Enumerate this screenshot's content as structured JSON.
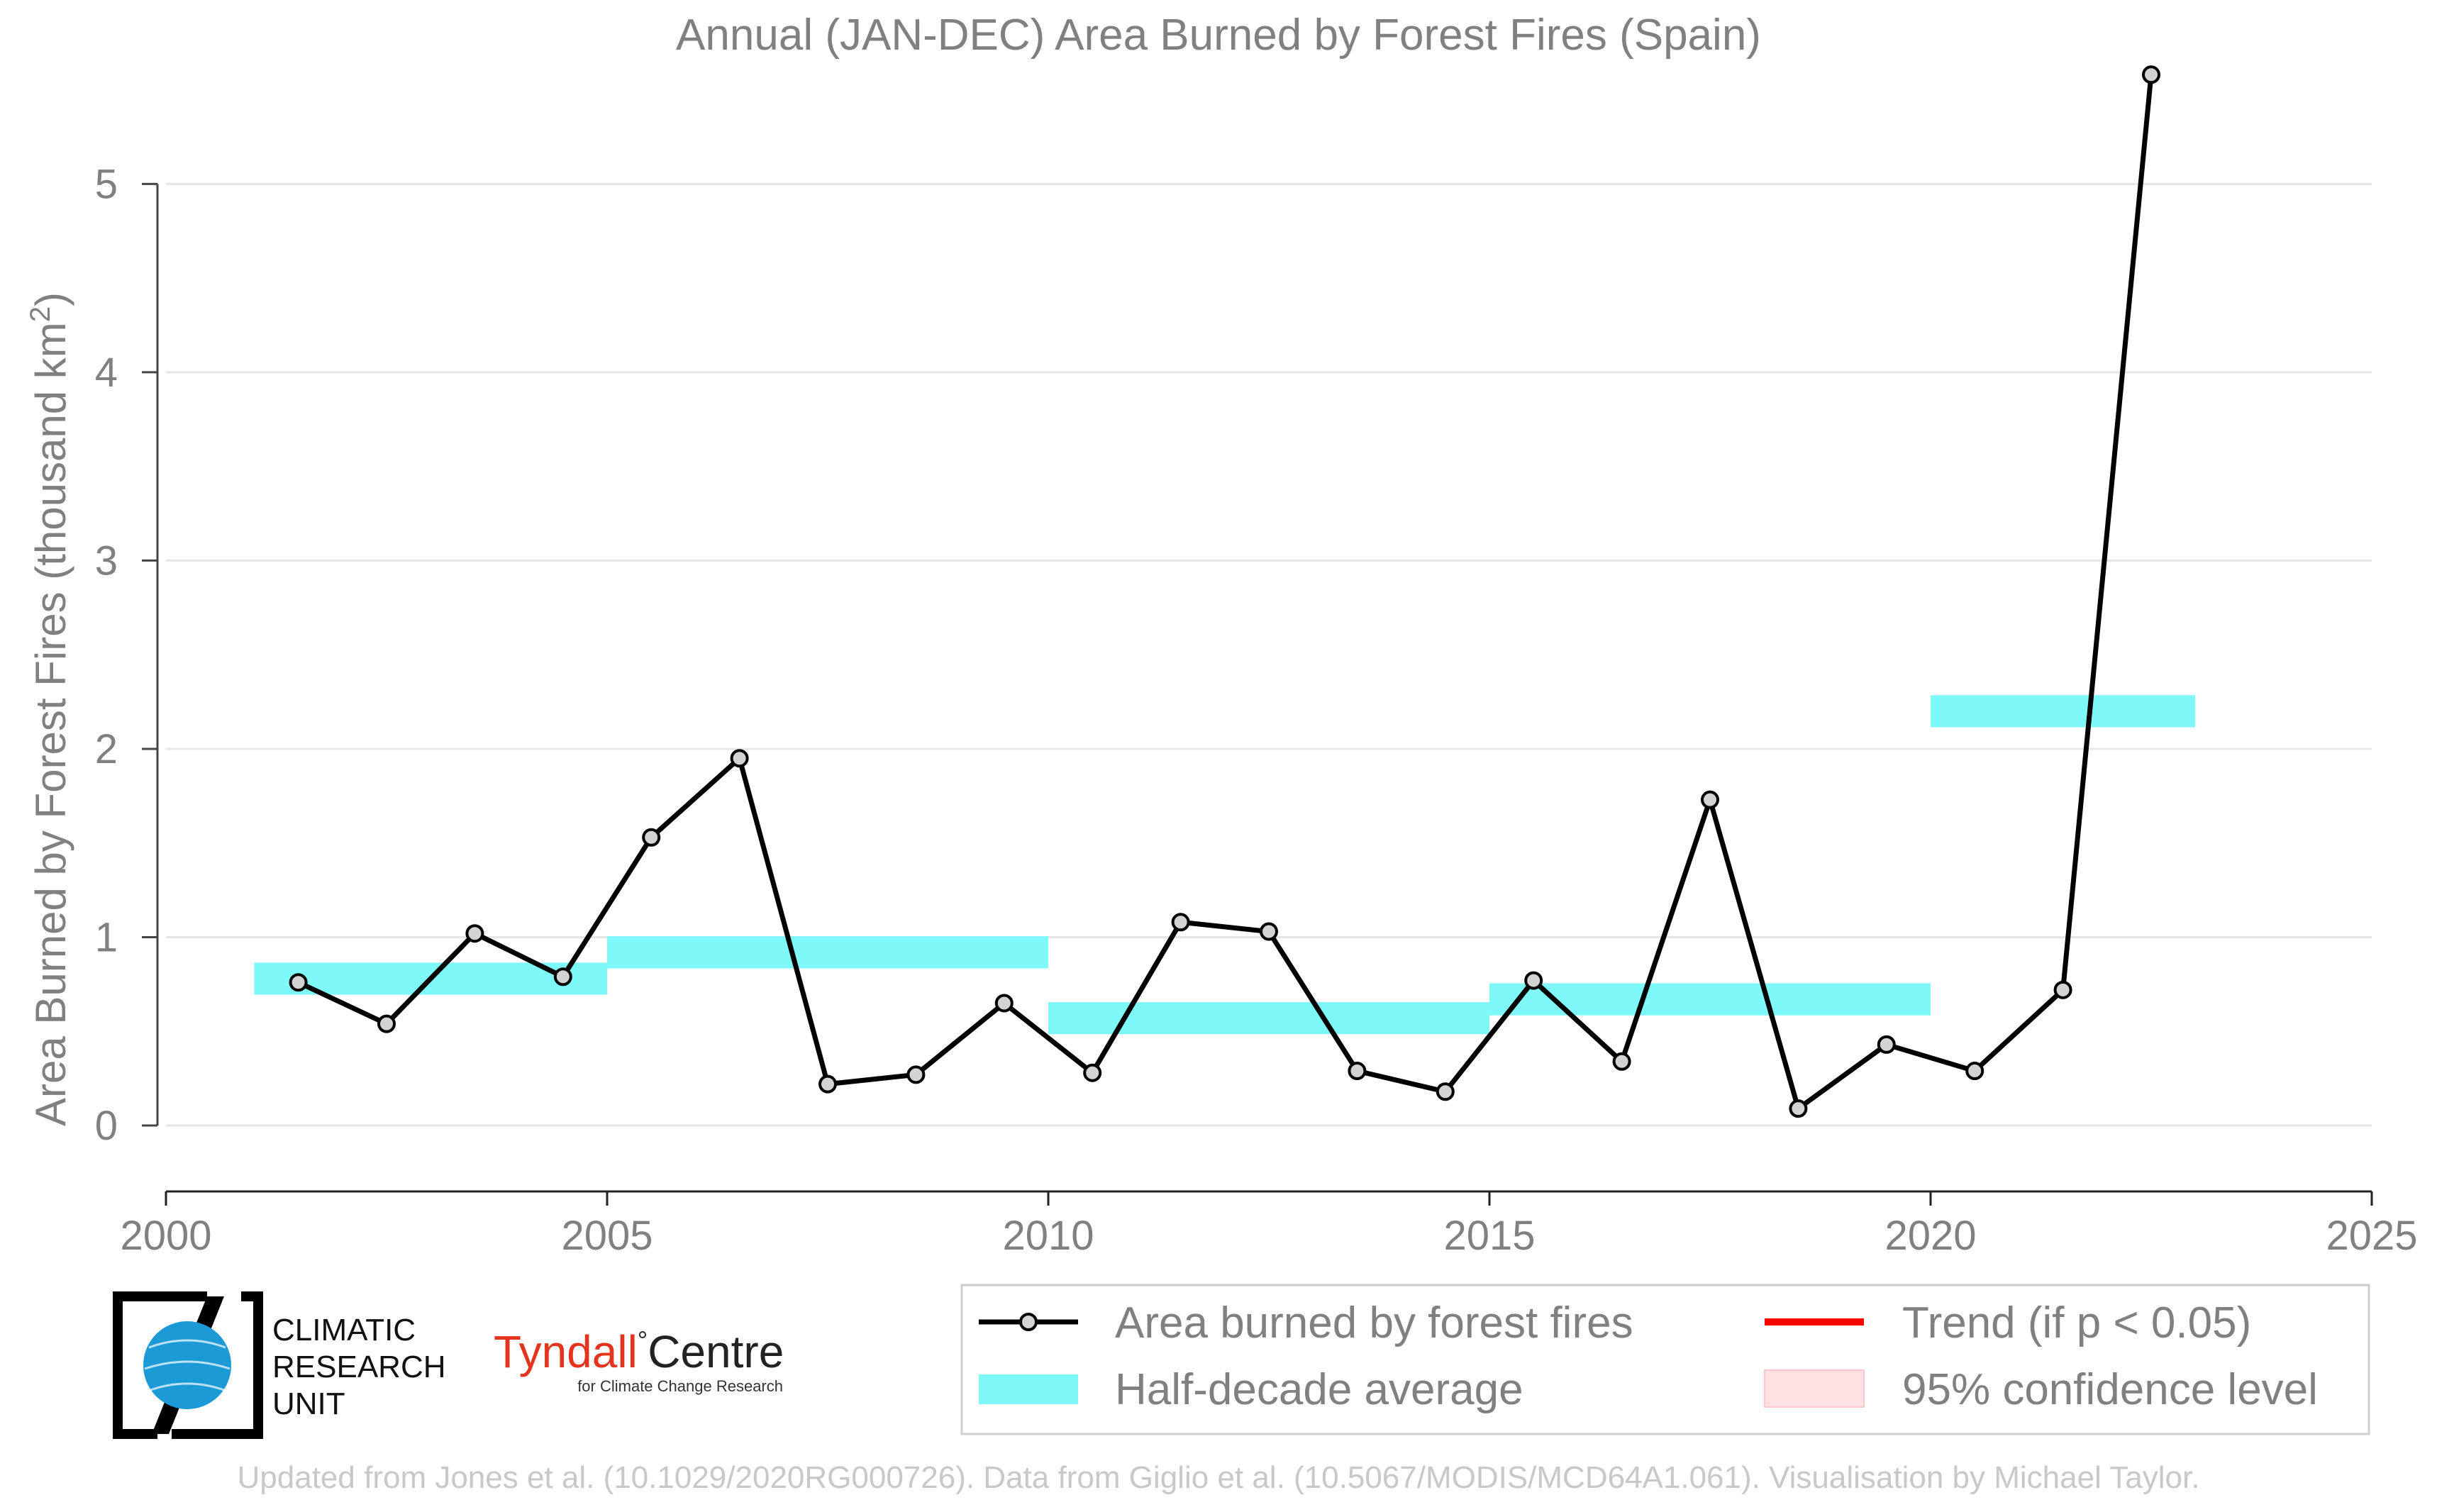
{
  "chart_data": {
    "type": "line",
    "title": "Annual (JAN-DEC) Area Burned by Forest Fires (Spain)",
    "ylabel_main": "Area Burned by Forest Fires (thousand km",
    "ylabel_sup": "2",
    "ylabel_end": ")",
    "xlabel": "",
    "xlim": [
      2000,
      2025
    ],
    "ylim": [
      -0.35,
      5.6
    ],
    "xticks": [
      2000,
      2005,
      2010,
      2015,
      2020,
      2025
    ],
    "yticks": [
      0,
      1,
      2,
      3,
      4,
      5
    ],
    "grid": "horizontal",
    "legend_position": "bottom-right",
    "series": [
      {
        "name": "Area burned by forest fires",
        "color": "#000000",
        "x": [
          2001.5,
          2002.5,
          2003.5,
          2004.5,
          2005.5,
          2006.5,
          2007.5,
          2008.5,
          2009.5,
          2010.5,
          2011.5,
          2012.5,
          2013.5,
          2014.5,
          2015.5,
          2016.5,
          2017.5,
          2018.5,
          2019.5,
          2020.5,
          2021.5,
          2022.5
        ],
        "values": [
          0.76,
          0.54,
          1.02,
          0.79,
          1.53,
          1.95,
          0.22,
          0.27,
          0.65,
          0.28,
          1.08,
          1.03,
          0.29,
          0.18,
          0.77,
          0.34,
          1.73,
          0.09,
          0.43,
          0.29,
          0.72,
          5.58
        ]
      },
      {
        "name": "Half-decade average",
        "color": "#7ff8fa",
        "type": "bar-span",
        "spans": [
          {
            "x0": 2001,
            "x1": 2005,
            "value": 0.78
          },
          {
            "x0": 2005,
            "x1": 2010,
            "value": 0.92
          },
          {
            "x0": 2010,
            "x1": 2015,
            "value": 0.57
          },
          {
            "x0": 2015,
            "x1": 2020,
            "value": 0.67
          },
          {
            "x0": 2020,
            "x1": 2023,
            "value": 2.2
          }
        ]
      }
    ],
    "legend": [
      {
        "label": "Area burned by forest fires",
        "kind": "line-marker",
        "color": "#000000"
      },
      {
        "label": "Trend (if p < 0.05)",
        "kind": "line",
        "color": "#ff0000"
      },
      {
        "label": "Half-decade average",
        "kind": "band",
        "color": "#7ff8fa"
      },
      {
        "label": "95% confidence level",
        "kind": "band",
        "color": "#ffe0e3"
      }
    ]
  },
  "logos": {
    "cru_lines": [
      "CLIMATIC",
      "RESEARCH",
      "UNIT"
    ],
    "tyndall_name": "Tyndall",
    "tyndall_centre": "Centre",
    "tyndall_sub": "for Climate Change Research"
  },
  "footer": "Updated from Jones et al. (10.1029/2020RG000726). Data from Giglio et al. (10.5067/MODIS/MCD64A1.061). Visualisation by Michael Taylor."
}
